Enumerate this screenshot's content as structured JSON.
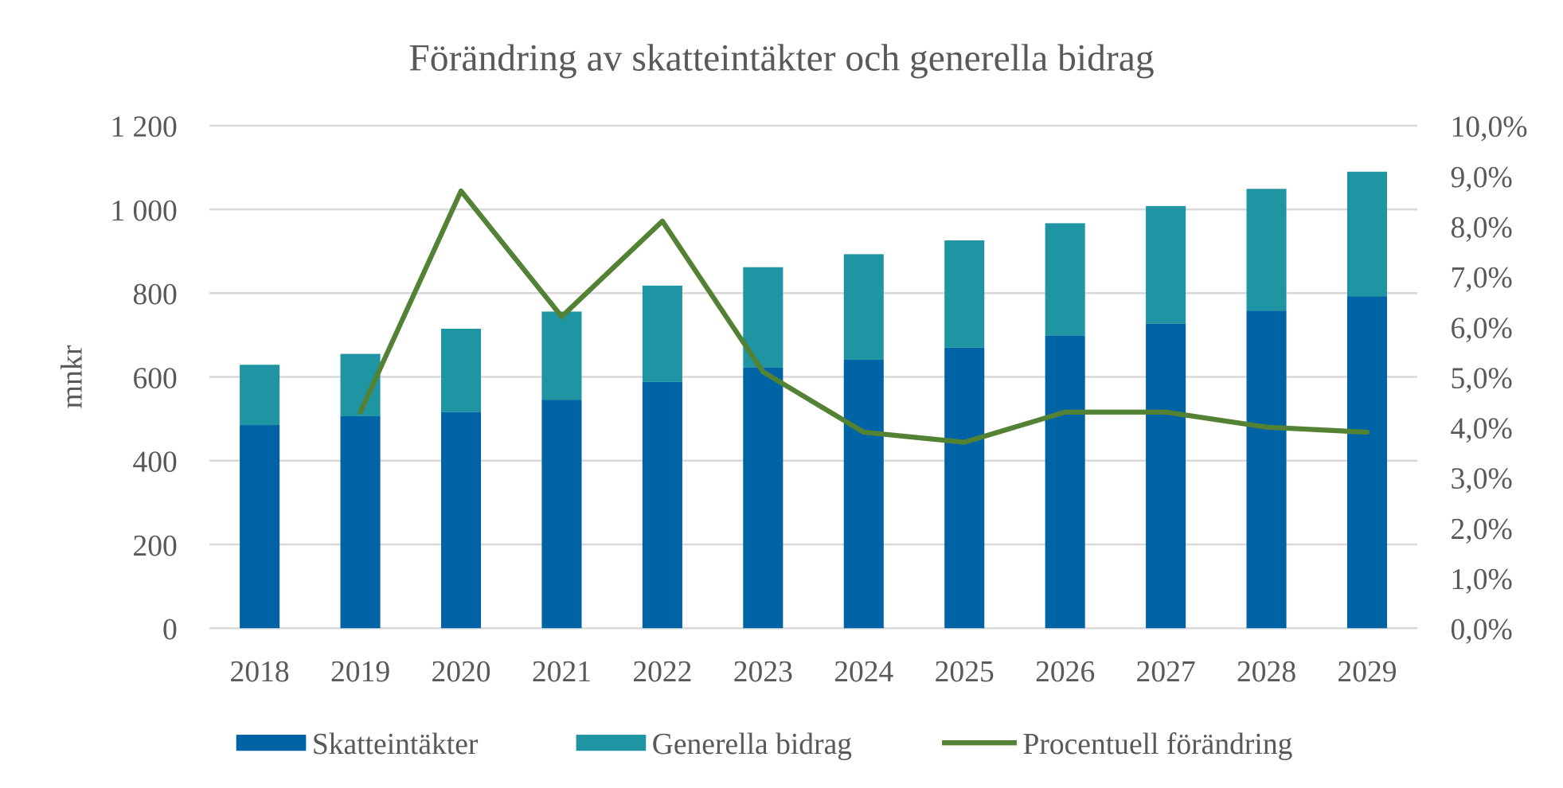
{
  "chart_data": {
    "type": "bar",
    "stacked": true,
    "title": "Förändring av skatteintäkter och generella bidrag",
    "ylabel": "mnkr",
    "ylabel_right": "",
    "xlabel": "",
    "categories": [
      "2018",
      "2019",
      "2020",
      "2021",
      "2022",
      "2023",
      "2024",
      "2025",
      "2026",
      "2027",
      "2028",
      "2029"
    ],
    "ylim": [
      0,
      1200
    ],
    "y_ticks": [
      0,
      200,
      400,
      600,
      800,
      1000,
      1200
    ],
    "y_tick_labels": [
      "0",
      "200",
      "400",
      "600",
      "800",
      "1 000",
      "1 200"
    ],
    "y2lim": [
      0,
      10
    ],
    "y2_tick_labels": [
      "0,0%",
      "1,0%",
      "2,0%",
      "3,0%",
      "4,0%",
      "5,0%",
      "6,0%",
      "7,0%",
      "8,0%",
      "9,0%",
      "10,0%"
    ],
    "grid": true,
    "legend_position": "bottom",
    "series": [
      {
        "name": "Skatteintäkter",
        "type": "bar",
        "axis": "left",
        "color": "#0063A6",
        "values": [
          485,
          506,
          516,
          545,
          588,
          622,
          641,
          670,
          698,
          727,
          758,
          792
        ]
      },
      {
        "name": "Generella bidrag",
        "type": "bar",
        "axis": "left",
        "color": "#1F95A3",
        "values": [
          144,
          149,
          199,
          211,
          230,
          240,
          252,
          256,
          269,
          281,
          291,
          298
        ]
      },
      {
        "name": "Procentuell förändring",
        "type": "line",
        "axis": "right",
        "unit": "%",
        "color": "#548235",
        "values": [
          null,
          4.3,
          8.7,
          6.2,
          8.1,
          5.1,
          3.9,
          3.7,
          4.3,
          4.3,
          4.0,
          3.9
        ]
      }
    ]
  }
}
